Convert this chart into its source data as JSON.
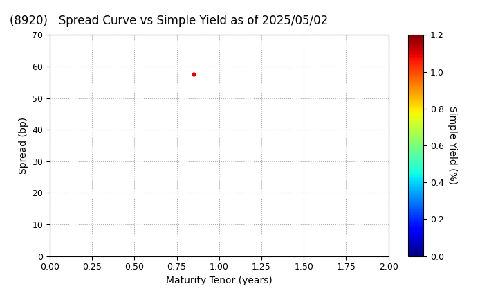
{
  "title": "(8920)   Spread Curve vs Simple Yield as of 2025/05/02",
  "xlabel": "Maturity Tenor (years)",
  "ylabel": "Spread (bp)",
  "colorbar_label": "Simple Yield (%)",
  "xlim": [
    0.0,
    2.0
  ],
  "ylim": [
    0,
    70
  ],
  "xticks": [
    0.0,
    0.25,
    0.5,
    0.75,
    1.0,
    1.25,
    1.5,
    1.75,
    2.0
  ],
  "yticks": [
    0,
    10,
    20,
    30,
    40,
    50,
    60,
    70
  ],
  "colorbar_min": 0.0,
  "colorbar_max": 1.2,
  "colorbar_ticks": [
    0.0,
    0.2,
    0.4,
    0.6,
    0.8,
    1.0,
    1.2
  ],
  "point_x": 0.849,
  "point_y": 57.5,
  "point_color_value": 1.1,
  "point_size": 12,
  "grid_color": "#aaaaaa",
  "background_color": "#ffffff",
  "title_fontsize": 12,
  "axis_fontsize": 10,
  "tick_fontsize": 9
}
